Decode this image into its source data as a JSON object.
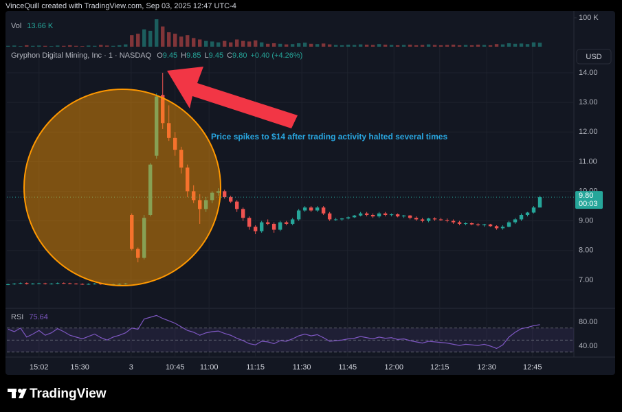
{
  "chart_data": {
    "type": "candlestick",
    "caption": "VinceQuill created with TradingView.com, Sep 03, 2025 12:47 UTC-4",
    "title": "Gryphon Digital Mining, Inc · 1 · NASDAQ",
    "ohlc_legend": [
      {
        "label": "O",
        "value": "9.45"
      },
      {
        "label": "H",
        "value": "9.85"
      },
      {
        "label": "L",
        "value": "9.45"
      },
      {
        "label": "C",
        "value": "9.80"
      }
    ],
    "change": "+0.40 (+4.26%)",
    "currency": "USD",
    "annotation": "Price spikes to $14 after trading activity halted several times",
    "watermark": "TradingView",
    "up_color": "#26a69a",
    "down_color": "#ef5350",
    "open": [
      6.85,
      6.86,
      6.88,
      6.9,
      6.87,
      6.88,
      6.89,
      6.87,
      6.88,
      6.9,
      6.89,
      6.88,
      6.87,
      6.86,
      6.87,
      6.88,
      6.86,
      6.85,
      6.86,
      6.87,
      9.2,
      8.05,
      7.75,
      9.2,
      11.2,
      13.25,
      12.3,
      11.8,
      11.4,
      10.8,
      10.0,
      9.7,
      9.4,
      9.7,
      9.95,
      10.0,
      9.8,
      9.65,
      9.4,
      9.1,
      8.8,
      8.65,
      8.95,
      8.9,
      8.7,
      8.95,
      8.9,
      9.05,
      9.35,
      9.45,
      9.35,
      9.45,
      9.25,
      9.05,
      9.05,
      9.08,
      9.12,
      9.18,
      9.25,
      9.2,
      9.15,
      9.25,
      9.2,
      9.22,
      9.15,
      9.18,
      9.1,
      9.05,
      9.0,
      9.08,
      9.05,
      9.02,
      9.0,
      8.95,
      8.9,
      8.92,
      8.88,
      8.85,
      8.88,
      8.82,
      8.75,
      8.8,
      8.95,
      9.05,
      9.2,
      9.28,
      9.45
    ],
    "high": [
      6.88,
      6.9,
      6.92,
      6.92,
      6.9,
      6.91,
      6.91,
      6.9,
      6.92,
      6.92,
      6.91,
      6.9,
      6.89,
      6.89,
      6.9,
      6.9,
      6.88,
      6.88,
      6.89,
      6.9,
      9.25,
      8.1,
      9.2,
      10.95,
      13.3,
      14.0,
      12.9,
      12.0,
      11.5,
      10.9,
      10.2,
      9.9,
      9.8,
      10.0,
      10.1,
      10.05,
      9.85,
      9.7,
      9.45,
      9.15,
      8.85,
      9.0,
      9.05,
      8.95,
      9.0,
      9.0,
      9.1,
      9.4,
      9.5,
      9.5,
      9.5,
      9.5,
      9.3,
      9.1,
      9.1,
      9.15,
      9.2,
      9.3,
      9.3,
      9.25,
      9.3,
      9.3,
      9.25,
      9.25,
      9.2,
      9.2,
      9.15,
      9.1,
      9.1,
      9.12,
      9.1,
      9.08,
      9.05,
      9.0,
      8.95,
      8.95,
      8.92,
      8.9,
      8.9,
      8.85,
      8.85,
      9.0,
      9.1,
      9.25,
      9.3,
      9.5,
      9.85
    ],
    "low": [
      6.83,
      6.84,
      6.86,
      6.85,
      6.85,
      6.86,
      6.85,
      6.85,
      6.86,
      6.87,
      6.86,
      6.85,
      6.84,
      6.84,
      6.85,
      6.84,
      6.83,
      6.83,
      6.84,
      6.85,
      8.0,
      7.6,
      7.7,
      9.15,
      11.1,
      12.1,
      11.7,
      11.2,
      10.6,
      9.8,
      9.6,
      8.9,
      9.3,
      9.6,
      9.85,
      9.75,
      9.6,
      9.3,
      9.0,
      8.7,
      8.55,
      8.6,
      8.85,
      8.6,
      8.65,
      8.85,
      8.85,
      9.0,
      9.3,
      9.3,
      9.3,
      9.2,
      9.0,
      9.0,
      9.0,
      9.05,
      9.1,
      9.15,
      9.15,
      9.1,
      9.1,
      9.15,
      9.15,
      9.12,
      9.1,
      9.05,
      9.0,
      8.95,
      8.95,
      9.0,
      9.0,
      8.95,
      8.9,
      8.85,
      8.85,
      8.85,
      8.82,
      8.8,
      8.8,
      8.7,
      8.7,
      8.78,
      8.9,
      9.0,
      9.15,
      9.25,
      9.45
    ],
    "close": [
      6.86,
      6.88,
      6.9,
      6.87,
      6.88,
      6.89,
      6.87,
      6.88,
      6.9,
      6.89,
      6.88,
      6.87,
      6.86,
      6.87,
      6.88,
      6.86,
      6.85,
      6.86,
      6.87,
      6.88,
      8.05,
      7.75,
      9.1,
      10.9,
      13.2,
      12.3,
      11.8,
      11.4,
      10.8,
      10.0,
      9.7,
      9.4,
      9.7,
      9.95,
      10.0,
      9.8,
      9.65,
      9.4,
      9.1,
      8.8,
      8.65,
      8.95,
      8.9,
      8.7,
      8.95,
      8.9,
      9.05,
      9.35,
      9.45,
      9.35,
      9.45,
      9.25,
      9.05,
      9.05,
      9.08,
      9.12,
      9.18,
      9.25,
      9.2,
      9.15,
      9.25,
      9.2,
      9.22,
      9.15,
      9.18,
      9.1,
      9.05,
      9.0,
      9.08,
      9.05,
      9.02,
      9.0,
      8.95,
      8.9,
      8.92,
      8.88,
      8.85,
      8.88,
      8.82,
      8.75,
      8.8,
      8.95,
      9.05,
      9.2,
      9.28,
      9.45,
      9.8
    ],
    "xlim": [
      -0.2,
      91.5
    ],
    "xticks": [
      {
        "value": 5.0,
        "label": "15:02"
      },
      {
        "value": 11.6,
        "label": "15:30"
      },
      {
        "value": 19.9,
        "label": "3"
      },
      {
        "value": 27.0,
        "label": "10:45"
      },
      {
        "value": 32.5,
        "label": "11:00"
      },
      {
        "value": 40.0,
        "label": "11:15"
      },
      {
        "value": 47.5,
        "label": "11:30"
      },
      {
        "value": 54.9,
        "label": "11:45"
      },
      {
        "value": 62.4,
        "label": "12:00"
      },
      {
        "value": 69.8,
        "label": "12:15"
      },
      {
        "value": 77.4,
        "label": "12:30"
      },
      {
        "value": 84.8,
        "label": "12:45"
      }
    ],
    "ylim": [
      6.07,
      14.88
    ],
    "yticks": [
      {
        "value": 7,
        "label": "7.00"
      },
      {
        "value": 8,
        "label": "8.00"
      },
      {
        "value": 9,
        "label": "9.00"
      },
      {
        "value": 10,
        "label": "10.00"
      },
      {
        "value": 11,
        "label": "11.00"
      },
      {
        "value": 12,
        "label": "12.00"
      },
      {
        "value": 13,
        "label": "13.00"
      },
      {
        "value": 14,
        "label": "14.00"
      }
    ],
    "grid": true,
    "last_price": {
      "label": "9.80",
      "countdown": "00:03"
    },
    "volume": {
      "name": "Vol",
      "current": {
        "value": 13.66,
        "label": "13.66 K"
      },
      "values": [
        3,
        4,
        2,
        5,
        3,
        4,
        3,
        2,
        4,
        3,
        5,
        3,
        2,
        4,
        3,
        6,
        4,
        3,
        5,
        8,
        40,
        45,
        60,
        55,
        95,
        70,
        50,
        45,
        35,
        40,
        30,
        25,
        20,
        18,
        15,
        20,
        15,
        25,
        20,
        18,
        22,
        15,
        10,
        12,
        10,
        8,
        9,
        12,
        14,
        10,
        9,
        11,
        8,
        6,
        5,
        7,
        6,
        8,
        7,
        6,
        9,
        7,
        6,
        5,
        6,
        7,
        5,
        6,
        8,
        6,
        5,
        6,
        7,
        5,
        6,
        5,
        7,
        6,
        5,
        9,
        8,
        12,
        10,
        11,
        9,
        15,
        13.66
      ],
      "ylim": [
        0,
        126
      ],
      "yticks": [
        {
          "value": 100,
          "label": "100 K"
        }
      ]
    },
    "rsi": {
      "name": "RSI",
      "current": 75.64,
      "color": "#7e57c2",
      "values": [
        68,
        64,
        70,
        55,
        60,
        66,
        58,
        62,
        69,
        64,
        58,
        55,
        52,
        56,
        60,
        54,
        50,
        55,
        58,
        62,
        70,
        68,
        85,
        88,
        91,
        86,
        82,
        78,
        72,
        66,
        63,
        58,
        62,
        64,
        65,
        61,
        58,
        53,
        49,
        44,
        42,
        48,
        47,
        44,
        49,
        48,
        52,
        57,
        60,
        57,
        59,
        54,
        48,
        49,
        50,
        52,
        53,
        56,
        54,
        52,
        55,
        53,
        54,
        51,
        52,
        49,
        47,
        45,
        48,
        47,
        46,
        45,
        43,
        41,
        43,
        42,
        41,
        43,
        40,
        36,
        42,
        55,
        63,
        69,
        71,
        74,
        75.64
      ],
      "ylim": [
        21.7,
        101.7
      ],
      "yticks": [
        {
          "value": 40,
          "label": "40.00"
        },
        {
          "value": 80,
          "label": "80.00"
        }
      ],
      "levels": [
        70,
        50,
        30
      ]
    }
  }
}
